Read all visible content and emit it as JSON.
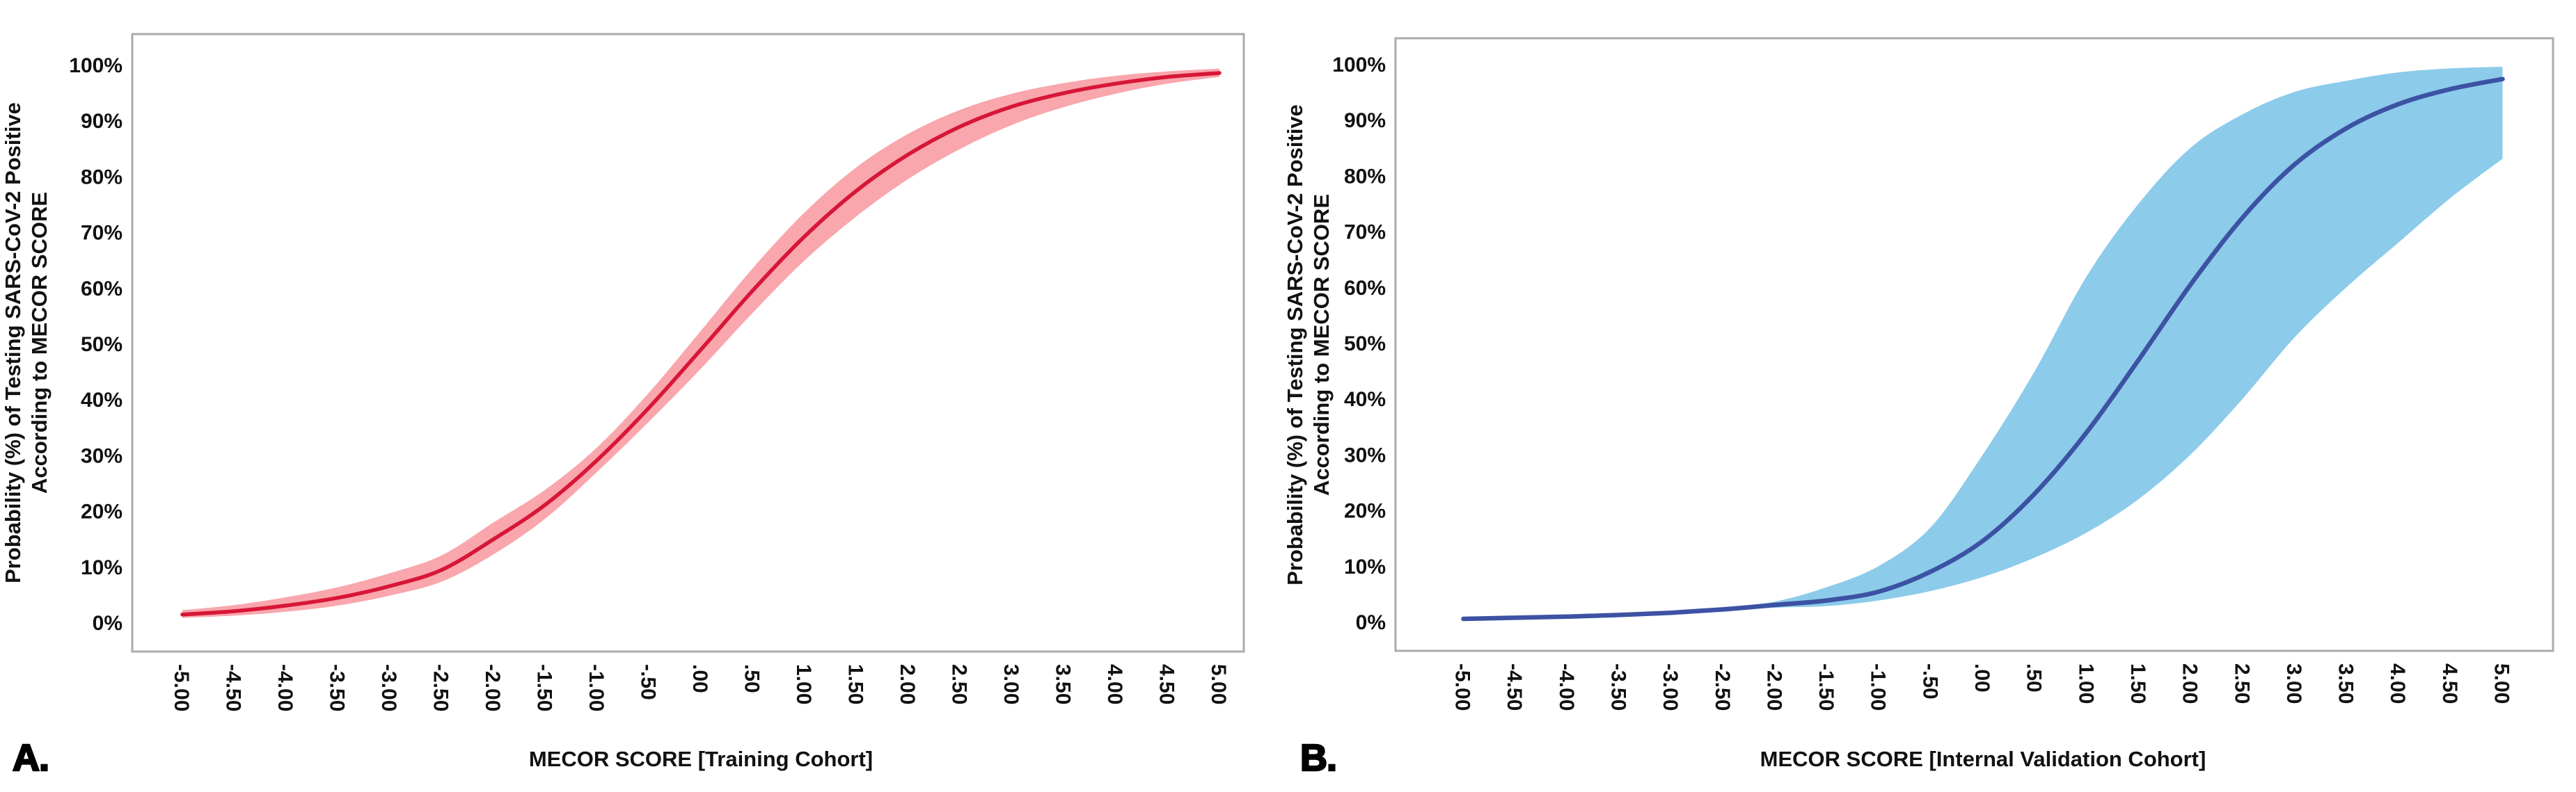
{
  "figure": {
    "background": "#ffffff",
    "frame_color": "#ababab",
    "text_color": "#111111"
  },
  "chart_data": [
    {
      "type": "line",
      "panel_letter": "A.",
      "xlabel": "MECOR SCORE [Training Cohort]",
      "ylabel_line1": "Probability (%) of Testing SARS-CoV-2 Positive",
      "ylabel_line2": "According to MECOR SCORE",
      "line_color": "#d71638",
      "band_color": "#f9a6ad",
      "xlim": [
        -5.5,
        5.5
      ],
      "ylim": [
        -5,
        105
      ],
      "x_tick_labels": [
        "-5.00",
        "-4.50",
        "-4.00",
        "-3.50",
        "-3.00",
        "-2.50",
        "-2.00",
        "-1.50",
        "-1.00",
        "-.50",
        ".00",
        ".50",
        "1.00",
        "1.50",
        "2.00",
        "2.50",
        "3.00",
        "3.50",
        "4.00",
        "4.50",
        "5.00"
      ],
      "y_tick_labels": [
        "0%",
        "10%",
        "20%",
        "30%",
        "40%",
        "50%",
        "60%",
        "70%",
        "80%",
        "90%",
        "100%"
      ],
      "x": [
        -5,
        -4.5,
        -4,
        -3.5,
        -3,
        -2.5,
        -2,
        -1.5,
        -1,
        -0.5,
        0,
        0.5,
        1,
        1.5,
        2,
        2.5,
        3,
        3.5,
        4,
        4.5,
        5
      ],
      "probability_pct": [
        1.4,
        2.0,
        3.0,
        4.4,
        6.5,
        9.4,
        14.9,
        21.1,
        29.1,
        38.5,
        48.9,
        59.5,
        69.2,
        77.4,
        83.9,
        88.9,
        92.5,
        94.9,
        96.6,
        97.8,
        98.5
      ],
      "ci_lower_pct": [
        0.8,
        1.2,
        1.9,
        3.0,
        4.8,
        7.3,
        12.2,
        18.6,
        27.0,
        36.0,
        45.5,
        55.5,
        64.9,
        72.8,
        79.5,
        84.9,
        89.2,
        92.4,
        94.8,
        96.6,
        97.8
      ],
      "ci_upper_pct": [
        2.2,
        3.1,
        4.5,
        6.3,
        8.8,
        12.0,
        17.9,
        23.8,
        31.4,
        41.2,
        52.3,
        63.5,
        73.5,
        81.6,
        87.6,
        91.9,
        94.8,
        96.7,
        98.0,
        98.8,
        99.3
      ],
      "legend_position": "none",
      "grid": false
    },
    {
      "type": "line",
      "panel_letter": "B.",
      "xlabel": "MECOR SCORE [Internal Validation Cohort]",
      "ylabel_line1": "Probability (%) of Testing SARS-CoV-2 Positive",
      "ylabel_line2": "According to MECOR SCORE",
      "line_color": "#3c52a3",
      "band_color": "#8ccbea",
      "xlim": [
        -5.5,
        5.5
      ],
      "ylim": [
        -5,
        105
      ],
      "x_tick_labels": [
        "-5.00",
        "-4.50",
        "-4.00",
        "-3.50",
        "-3.00",
        "-2.50",
        "-2.00",
        "-1.50",
        "-1.00",
        "-.50",
        ".00",
        ".50",
        "1.00",
        "1.50",
        "2.00",
        "2.50",
        "3.00",
        "3.50",
        "4.00",
        "4.50",
        "5.00"
      ],
      "y_tick_labels": [
        "0%",
        "10%",
        "20%",
        "30%",
        "40%",
        "50%",
        "60%",
        "70%",
        "80%",
        "90%",
        "100%"
      ],
      "x": [
        -5,
        -4.5,
        -4,
        -3.5,
        -3,
        -2.5,
        -2,
        -1.5,
        -1,
        -0.5,
        0,
        0.5,
        1,
        1.5,
        2,
        2.5,
        3,
        3.5,
        4,
        4.5,
        5
      ],
      "probability_pct": [
        0.5,
        0.7,
        0.9,
        1.2,
        1.6,
        2.2,
        3.0,
        3.8,
        5.4,
        9.0,
        14.5,
        23.0,
        34.0,
        47.0,
        60.5,
        72.5,
        82.0,
        88.5,
        92.8,
        95.5,
        97.3
      ],
      "ci_lower_pct": [
        0.3,
        0.5,
        0.7,
        1.0,
        1.3,
        1.8,
        2.5,
        2.8,
        3.8,
        5.5,
        8.0,
        11.5,
        16.0,
        22.0,
        30.0,
        40.0,
        51.0,
        60.0,
        68.0,
        76.0,
        83.0
      ],
      "ci_upper_pct": [
        0.7,
        0.9,
        1.1,
        1.5,
        1.9,
        2.6,
        3.6,
        6.2,
        10.0,
        17.0,
        30.0,
        45.0,
        62.0,
        75.0,
        85.0,
        91.0,
        95.0,
        97.0,
        98.5,
        99.2,
        99.5
      ],
      "legend_position": "none",
      "grid": false
    }
  ]
}
